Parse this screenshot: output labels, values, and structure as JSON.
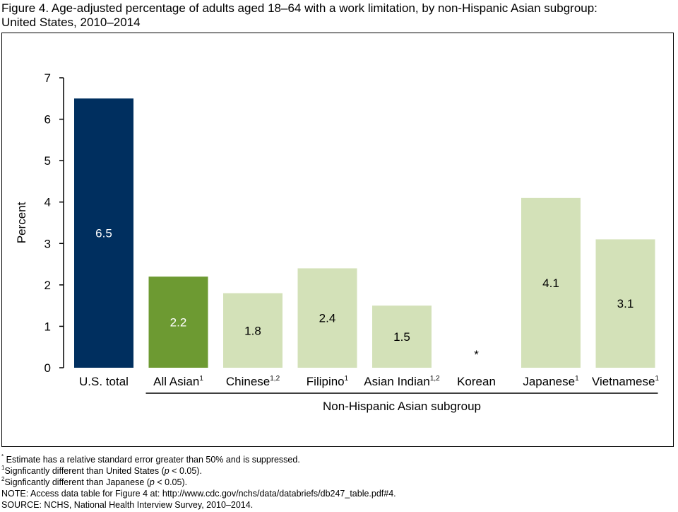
{
  "title": {
    "line1": "Figure 4. Age-adjusted percentage of adults aged 18–64 with a work limitation, by non-Hispanic Asian subgroup:",
    "line2": "United States, 2010–2014"
  },
  "chart_data": {
    "type": "bar",
    "ylabel": "Percent",
    "xlabel": "Non-Hispanic Asian subgroup",
    "ylim": [
      0,
      7
    ],
    "yticks": [
      "0",
      "1",
      "2",
      "3",
      "4",
      "5",
      "6",
      "7"
    ],
    "categories": [
      {
        "label": "U.S. total",
        "sup": ""
      },
      {
        "label": "All Asian",
        "sup": "1"
      },
      {
        "label": "Chinese",
        "sup": "1,2"
      },
      {
        "label": "Filipino",
        "sup": "1"
      },
      {
        "label": "Asian Indian",
        "sup": "1,2"
      },
      {
        "label": "Korean",
        "sup": ""
      },
      {
        "label": "Japanese",
        "sup": "1"
      },
      {
        "label": "Vietnamese",
        "sup": "1"
      }
    ],
    "values": [
      6.5,
      2.2,
      1.8,
      2.4,
      1.5,
      null,
      4.1,
      3.1
    ],
    "data_labels": [
      "6.5",
      "2.2",
      "1.8",
      "2.4",
      "1.5",
      "*",
      "4.1",
      "3.1"
    ],
    "colors": [
      "#002f5f",
      "#6d9a32",
      "#d3e1b8",
      "#d3e1b8",
      "#d3e1b8",
      "#d3e1b8",
      "#d3e1b8",
      "#d3e1b8"
    ],
    "label_colors": [
      "#ffffff",
      "#ffffff",
      "#000000",
      "#000000",
      "#000000",
      "#000000",
      "#000000",
      "#000000"
    ],
    "grid": false,
    "legend": "none"
  },
  "notes": {
    "n0_mark": "*",
    "n0_text": "Estimate has a relative standard error greater than 50% and is suppressed.",
    "n1_mark": "1",
    "n1_text_a": "Signficantly different than United States (",
    "n1_p": "p",
    "n1_text_b": " < 0.05).",
    "n2_mark": "2",
    "n2_text_a": "Signficantly different than Japanese (",
    "n2_p": "p",
    "n2_text_b": " < 0.05).",
    "note": "NOTE: Access data table for Figure 4 at: http://www.cdc.gov/nchs/data/databriefs/db247_table.pdf#4.",
    "source": "SOURCE: NCHS, National Health Interview Survey, 2010–2014."
  }
}
